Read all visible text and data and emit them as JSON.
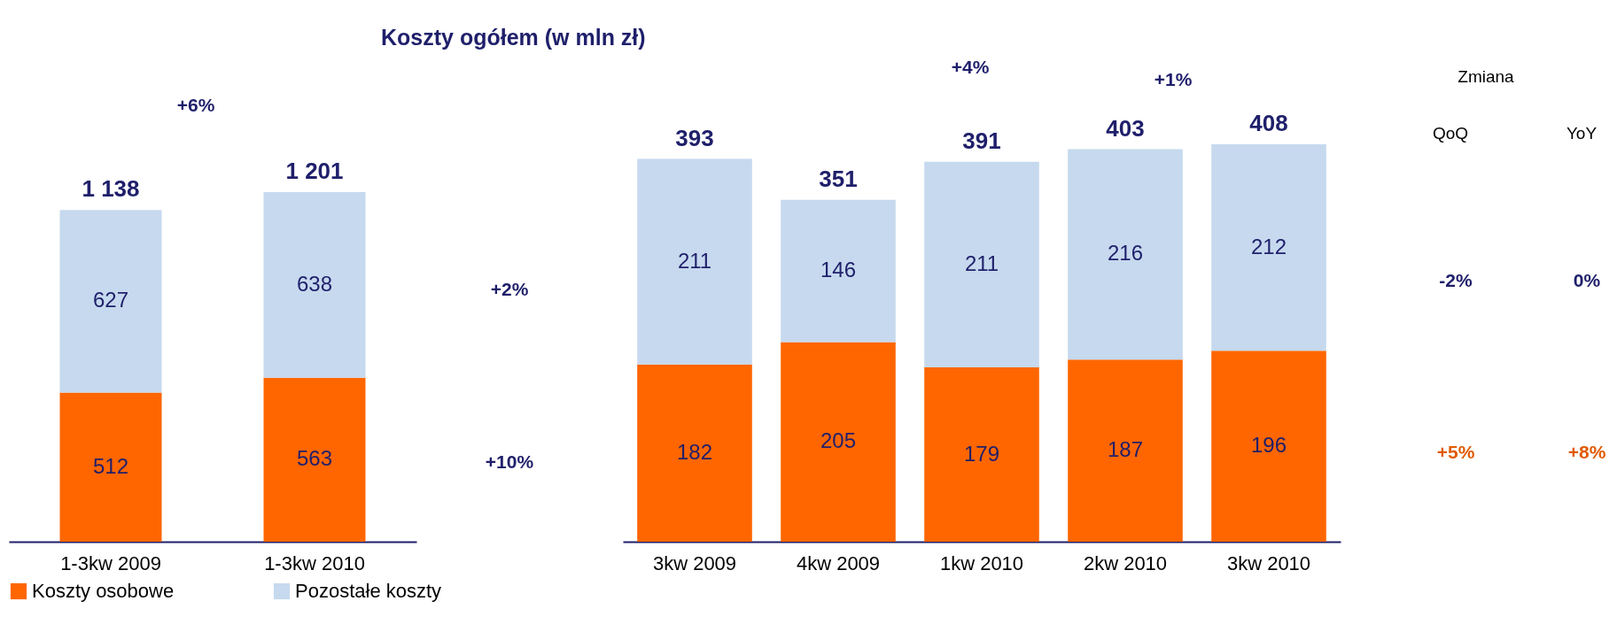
{
  "chart_data": [
    {
      "type": "bar",
      "title": "Koszty ogółem (w mln zł)",
      "categories": [
        "1-3kw 2009",
        "1-3kw 2010"
      ],
      "stacked": true,
      "data_labels": true,
      "totals": [
        "1 138",
        "1 201"
      ],
      "legend": "bottom",
      "tick_labels": "x",
      "series": [
        {
          "name": "Koszty osobowe",
          "color": "#ff6600",
          "values": [
            512,
            563
          ]
        },
        {
          "name": "Pozostałe koszty",
          "color": "#c6d9ee",
          "values": [
            627,
            638
          ]
        }
      ],
      "annotations": [
        "+6%",
        "+2%",
        "+10%"
      ]
    },
    {
      "type": "bar",
      "categories": [
        "3kw 2009",
        "4kw 2009",
        "1kw 2010",
        "2kw 2010",
        "3kw 2010"
      ],
      "stacked": true,
      "data_labels": true,
      "totals": [
        "393",
        "351",
        "391",
        "403",
        "408"
      ],
      "tick_labels": "x",
      "series": [
        {
          "color": "#ff6600",
          "values": [
            182,
            205,
            179,
            187,
            196
          ]
        },
        {
          "color": "#c6d9ee",
          "values": [
            211,
            146,
            211,
            216,
            212
          ]
        }
      ],
      "annotations": [
        "+4%",
        "+1%",
        "Zmiana",
        "QoQ",
        "YoY",
        "-2%",
        "0%",
        "+5%",
        "+8%"
      ]
    }
  ]
}
